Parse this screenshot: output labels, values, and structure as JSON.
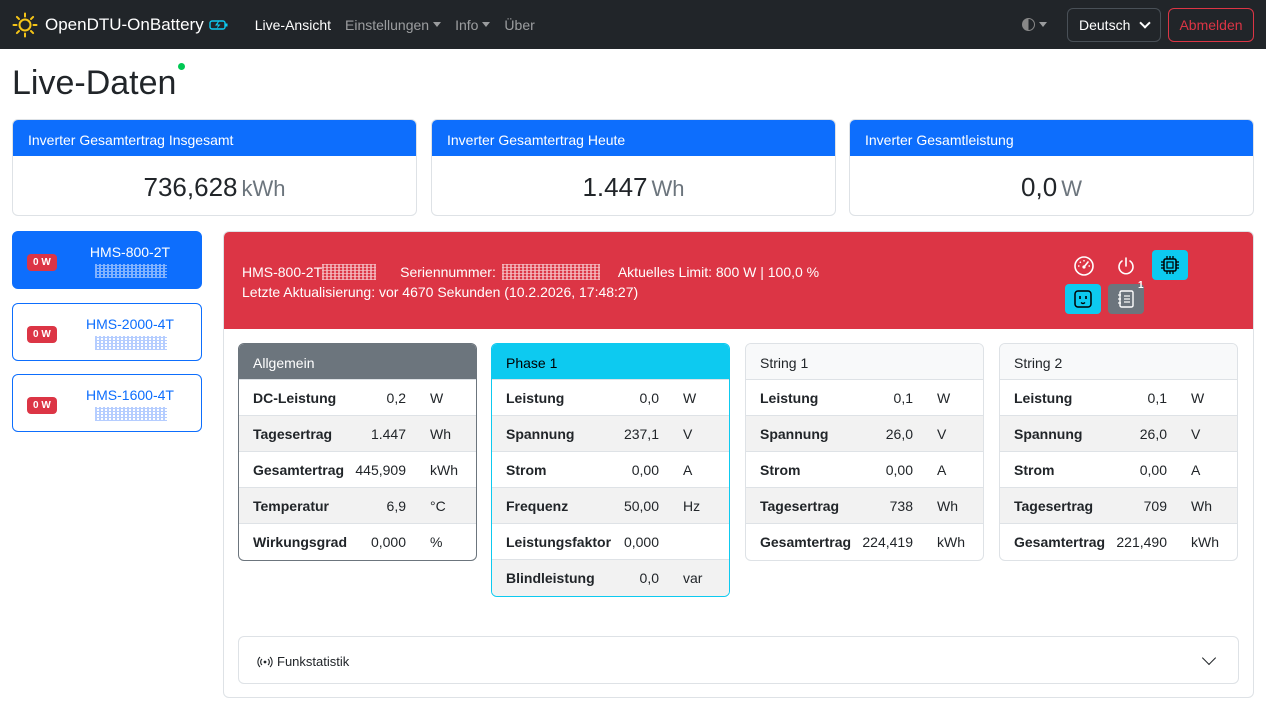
{
  "navbar": {
    "brand": "OpenDTU-OnBattery",
    "links": [
      "Live-Ansicht",
      "Einstellungen",
      "Info",
      "Über"
    ],
    "language": "Deutsch",
    "logout": "Abmelden"
  },
  "page": {
    "title": "Live-Daten"
  },
  "summary": [
    {
      "label": "Inverter Gesamtertrag Insgesamt",
      "value": "736,628",
      "unit": "kWh"
    },
    {
      "label": "Inverter Gesamtertrag Heute",
      "value": "1.447",
      "unit": "Wh"
    },
    {
      "label": "Inverter Gesamtleistung",
      "value": "0,0",
      "unit": "W"
    }
  ],
  "inverters": [
    {
      "badge": "0 W",
      "name": "HMS-800-2T",
      "active": true
    },
    {
      "badge": "0 W",
      "name": "HMS-2000-4T",
      "active": false
    },
    {
      "badge": "0 W",
      "name": "HMS-1600-4T",
      "active": false
    }
  ],
  "detail": {
    "name": "HMS-800-2T",
    "serial_label": "Seriennummer:",
    "limit": "Aktuelles Limit: 800 W | 100,0 %",
    "last_update": "Letzte Aktualisierung: vor 4670 Sekunden (10.2.2026, 17:48:27)",
    "notification_count": "1",
    "icons": [
      "speedometer-icon",
      "power-icon",
      "cpu-icon",
      "outlet-icon",
      "journal-icon"
    ]
  },
  "cards": [
    {
      "title": "Allgemein",
      "rows": [
        {
          "label": "DC-Leistung",
          "value": "0,2",
          "unit": "W"
        },
        {
          "label": "Tagesertrag",
          "value": "1.447",
          "unit": "Wh"
        },
        {
          "label": "Gesamtertrag",
          "value": "445,909",
          "unit": "kWh"
        },
        {
          "label": "Temperatur",
          "value": "6,9",
          "unit": "°C"
        },
        {
          "label": "Wirkungsgrad",
          "value": "0,000",
          "unit": "%"
        }
      ]
    },
    {
      "title": "Phase 1",
      "rows": [
        {
          "label": "Leistung",
          "value": "0,0",
          "unit": "W"
        },
        {
          "label": "Spannung",
          "value": "237,1",
          "unit": "V"
        },
        {
          "label": "Strom",
          "value": "0,00",
          "unit": "A"
        },
        {
          "label": "Frequenz",
          "value": "50,00",
          "unit": "Hz"
        },
        {
          "label": "Leistungsfaktor",
          "value": "0,000",
          "unit": ""
        },
        {
          "label": "Blindleistung",
          "value": "0,0",
          "unit": "var"
        }
      ]
    },
    {
      "title": "String 1",
      "rows": [
        {
          "label": "Leistung",
          "value": "0,1",
          "unit": "W"
        },
        {
          "label": "Spannung",
          "value": "26,0",
          "unit": "V"
        },
        {
          "label": "Strom",
          "value": "0,00",
          "unit": "A"
        },
        {
          "label": "Tagesertrag",
          "value": "738",
          "unit": "Wh"
        },
        {
          "label": "Gesamtertrag",
          "value": "224,419",
          "unit": "kWh"
        }
      ]
    },
    {
      "title": "String 2",
      "rows": [
        {
          "label": "Leistung",
          "value": "0,1",
          "unit": "W"
        },
        {
          "label": "Spannung",
          "value": "26,0",
          "unit": "V"
        },
        {
          "label": "Strom",
          "value": "0,00",
          "unit": "A"
        },
        {
          "label": "Tagesertrag",
          "value": "709",
          "unit": "Wh"
        },
        {
          "label": "Gesamtertrag",
          "value": "221,490",
          "unit": "kWh"
        }
      ]
    }
  ],
  "radio_stats": {
    "label": "Funkstatistik"
  },
  "colors": {
    "primary": "#0d6efd",
    "danger": "#dc3545",
    "info": "#0dcaf0",
    "secondary": "#6c757d",
    "navbar": "#212529",
    "status_dot": "#00c853"
  }
}
